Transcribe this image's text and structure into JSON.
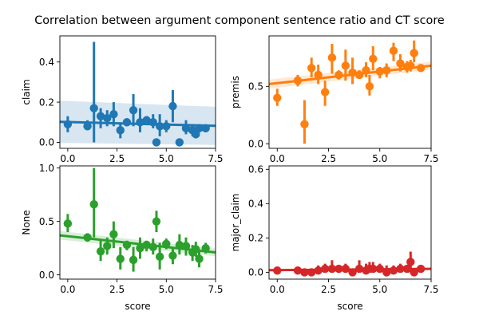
{
  "title": "Correlation between argument component sentence ratio and CT score",
  "chart_data": [
    {
      "type": "scatter",
      "ylabel": "claim",
      "xlabel": "",
      "color": "#1f77b4",
      "xlim": [
        -0.4,
        7.5
      ],
      "ylim": [
        -0.03,
        0.53
      ],
      "xticks": [
        0.0,
        2.5,
        5.0,
        7.5
      ],
      "xtick_labels": [
        "0.0",
        "2.5",
        "5.0",
        "7.5"
      ],
      "yticks": [
        0.0,
        0.2,
        0.4
      ],
      "ytick_labels": [
        "0.0",
        "0.2",
        "0.4"
      ],
      "points": [
        {
          "x": 0.0,
          "y": 0.09,
          "lo": 0.05,
          "hi": 0.13
        },
        {
          "x": 1.0,
          "y": 0.08,
          "lo": 0.06,
          "hi": 0.11
        },
        {
          "x": 1.33,
          "y": 0.17,
          "lo": 0.0,
          "hi": 0.5
        },
        {
          "x": 1.67,
          "y": 0.13,
          "lo": 0.07,
          "hi": 0.17
        },
        {
          "x": 2.0,
          "y": 0.12,
          "lo": 0.08,
          "hi": 0.16
        },
        {
          "x": 2.33,
          "y": 0.14,
          "lo": 0.08,
          "hi": 0.2
        },
        {
          "x": 2.67,
          "y": 0.06,
          "lo": 0.02,
          "hi": 0.1
        },
        {
          "x": 3.0,
          "y": 0.1,
          "lo": 0.08,
          "hi": 0.12
        },
        {
          "x": 3.33,
          "y": 0.16,
          "lo": 0.08,
          "hi": 0.24
        },
        {
          "x": 3.67,
          "y": 0.1,
          "lo": 0.05,
          "hi": 0.17
        },
        {
          "x": 4.0,
          "y": 0.11,
          "lo": 0.09,
          "hi": 0.13
        },
        {
          "x": 4.33,
          "y": 0.1,
          "lo": 0.07,
          "hi": 0.14
        },
        {
          "x": 4.5,
          "y": 0.0,
          "lo": 0.0,
          "hi": 0.0
        },
        {
          "x": 4.67,
          "y": 0.08,
          "lo": 0.03,
          "hi": 0.14
        },
        {
          "x": 5.0,
          "y": 0.08,
          "lo": 0.05,
          "hi": 0.11
        },
        {
          "x": 5.33,
          "y": 0.18,
          "lo": 0.1,
          "hi": 0.26
        },
        {
          "x": 5.67,
          "y": 0.0,
          "lo": 0.0,
          "hi": 0.0
        },
        {
          "x": 6.0,
          "y": 0.07,
          "lo": 0.04,
          "hi": 0.11
        },
        {
          "x": 6.33,
          "y": 0.06,
          "lo": 0.03,
          "hi": 0.09
        },
        {
          "x": 6.5,
          "y": 0.04,
          "lo": 0.02,
          "hi": 0.07
        },
        {
          "x": 6.67,
          "y": 0.07,
          "lo": 0.05,
          "hi": 0.09
        },
        {
          "x": 7.0,
          "y": 0.07,
          "lo": 0.05,
          "hi": 0.09
        }
      ],
      "fit": {
        "x0": -0.4,
        "y0": 0.102,
        "x1": 7.5,
        "y1": 0.082,
        "band_x0": 0.105,
        "band_x1": 0.095
      }
    },
    {
      "type": "scatter",
      "ylabel": "premis",
      "xlabel": "",
      "color": "#ff7f0e",
      "xlim": [
        -0.4,
        7.5
      ],
      "ylim": [
        -0.04,
        0.94
      ],
      "xticks": [
        0.0,
        2.5,
        5.0,
        7.5
      ],
      "xtick_labels": [
        "0.0",
        "2.5",
        "5.0",
        "7.5"
      ],
      "yticks": [
        0.0,
        0.5
      ],
      "ytick_labels": [
        "0.0",
        "0.5"
      ],
      "points": [
        {
          "x": 0.0,
          "y": 0.4,
          "lo": 0.33,
          "hi": 0.48
        },
        {
          "x": 1.0,
          "y": 0.55,
          "lo": 0.5,
          "hi": 0.6
        },
        {
          "x": 1.33,
          "y": 0.17,
          "lo": 0.0,
          "hi": 0.38
        },
        {
          "x": 1.67,
          "y": 0.66,
          "lo": 0.58,
          "hi": 0.75
        },
        {
          "x": 2.0,
          "y": 0.6,
          "lo": 0.52,
          "hi": 0.69
        },
        {
          "x": 2.33,
          "y": 0.45,
          "lo": 0.33,
          "hi": 0.55
        },
        {
          "x": 2.67,
          "y": 0.75,
          "lo": 0.61,
          "hi": 0.87
        },
        {
          "x": 3.0,
          "y": 0.6,
          "lo": 0.56,
          "hi": 0.64
        },
        {
          "x": 3.33,
          "y": 0.68,
          "lo": 0.55,
          "hi": 0.82
        },
        {
          "x": 3.67,
          "y": 0.62,
          "lo": 0.52,
          "hi": 0.75
        },
        {
          "x": 4.0,
          "y": 0.6,
          "lo": 0.57,
          "hi": 0.64
        },
        {
          "x": 4.33,
          "y": 0.64,
          "lo": 0.58,
          "hi": 0.71
        },
        {
          "x": 4.5,
          "y": 0.5,
          "lo": 0.42,
          "hi": 0.6
        },
        {
          "x": 4.67,
          "y": 0.74,
          "lo": 0.64,
          "hi": 0.85
        },
        {
          "x": 5.0,
          "y": 0.63,
          "lo": 0.57,
          "hi": 0.67
        },
        {
          "x": 5.33,
          "y": 0.64,
          "lo": 0.58,
          "hi": 0.7
        },
        {
          "x": 5.67,
          "y": 0.81,
          "lo": 0.72,
          "hi": 0.88
        },
        {
          "x": 6.0,
          "y": 0.7,
          "lo": 0.63,
          "hi": 0.78
        },
        {
          "x": 6.33,
          "y": 0.67,
          "lo": 0.62,
          "hi": 0.72
        },
        {
          "x": 6.5,
          "y": 0.68,
          "lo": 0.63,
          "hi": 0.73
        },
        {
          "x": 6.67,
          "y": 0.79,
          "lo": 0.71,
          "hi": 0.9
        },
        {
          "x": 7.0,
          "y": 0.66,
          "lo": 0.63,
          "hi": 0.69
        }
      ],
      "fit": {
        "x0": -0.4,
        "y0": 0.52,
        "x1": 7.5,
        "y1": 0.68,
        "band_x0": 0.04,
        "band_x1": 0.035
      }
    },
    {
      "type": "scatter",
      "ylabel": "None",
      "xlabel": "score",
      "color": "#2ca02c",
      "xlim": [
        -0.4,
        7.5
      ],
      "ylim": [
        -0.04,
        1.02
      ],
      "xticks": [
        0.0,
        2.5,
        5.0,
        7.5
      ],
      "xtick_labels": [
        "0.0",
        "2.5",
        "5.0",
        "7.5"
      ],
      "yticks": [
        0.0,
        0.5,
        1.0
      ],
      "ytick_labels": [
        "0.0",
        "0.5",
        "1.0"
      ],
      "points": [
        {
          "x": 0.0,
          "y": 0.48,
          "lo": 0.4,
          "hi": 0.57
        },
        {
          "x": 1.0,
          "y": 0.35,
          "lo": 0.31,
          "hi": 0.39
        },
        {
          "x": 1.33,
          "y": 0.66,
          "lo": 0.35,
          "hi": 1.0
        },
        {
          "x": 1.67,
          "y": 0.22,
          "lo": 0.13,
          "hi": 0.32
        },
        {
          "x": 2.0,
          "y": 0.27,
          "lo": 0.19,
          "hi": 0.35
        },
        {
          "x": 2.33,
          "y": 0.38,
          "lo": 0.25,
          "hi": 0.5
        },
        {
          "x": 2.67,
          "y": 0.15,
          "lo": 0.05,
          "hi": 0.26
        },
        {
          "x": 3.0,
          "y": 0.28,
          "lo": 0.23,
          "hi": 0.32
        },
        {
          "x": 3.33,
          "y": 0.14,
          "lo": 0.03,
          "hi": 0.26
        },
        {
          "x": 3.67,
          "y": 0.25,
          "lo": 0.15,
          "hi": 0.35
        },
        {
          "x": 4.0,
          "y": 0.28,
          "lo": 0.22,
          "hi": 0.32
        },
        {
          "x": 4.33,
          "y": 0.26,
          "lo": 0.19,
          "hi": 0.34
        },
        {
          "x": 4.5,
          "y": 0.5,
          "lo": 0.4,
          "hi": 0.6
        },
        {
          "x": 4.67,
          "y": 0.17,
          "lo": 0.05,
          "hi": 0.3
        },
        {
          "x": 5.0,
          "y": 0.29,
          "lo": 0.24,
          "hi": 0.34
        },
        {
          "x": 5.33,
          "y": 0.18,
          "lo": 0.1,
          "hi": 0.26
        },
        {
          "x": 5.67,
          "y": 0.28,
          "lo": 0.19,
          "hi": 0.38
        },
        {
          "x": 6.0,
          "y": 0.27,
          "lo": 0.18,
          "hi": 0.35
        },
        {
          "x": 6.33,
          "y": 0.21,
          "lo": 0.13,
          "hi": 0.28
        },
        {
          "x": 6.5,
          "y": 0.24,
          "lo": 0.17,
          "hi": 0.31
        },
        {
          "x": 6.67,
          "y": 0.15,
          "lo": 0.07,
          "hi": 0.24
        },
        {
          "x": 7.0,
          "y": 0.25,
          "lo": 0.2,
          "hi": 0.3
        }
      ],
      "fit": {
        "x0": -0.4,
        "y0": 0.37,
        "x1": 7.5,
        "y1": 0.21,
        "band_x0": 0.04,
        "band_x1": 0.035
      }
    },
    {
      "type": "scatter",
      "ylabel": "major_claim",
      "xlabel": "score",
      "color": "#d62728",
      "xlim": [
        -0.4,
        7.5
      ],
      "ylim": [
        -0.04,
        0.62
      ],
      "xticks": [
        0.0,
        2.5,
        5.0,
        7.5
      ],
      "xtick_labels": [
        "0.0",
        "2.5",
        "5.0",
        "7.5"
      ],
      "yticks": [
        0.0,
        0.2,
        0.4,
        0.6
      ],
      "ytick_labels": [
        "0.0",
        "0.2",
        "0.4",
        "0.6"
      ],
      "points": [
        {
          "x": 0.0,
          "y": 0.01,
          "lo": 0.0,
          "hi": 0.03
        },
        {
          "x": 1.0,
          "y": 0.01,
          "lo": 0.0,
          "hi": 0.02
        },
        {
          "x": 1.33,
          "y": 0.0,
          "lo": 0.0,
          "hi": 0.0
        },
        {
          "x": 1.67,
          "y": 0.0,
          "lo": 0.0,
          "hi": 0.0
        },
        {
          "x": 2.0,
          "y": 0.01,
          "lo": 0.0,
          "hi": 0.04
        },
        {
          "x": 2.33,
          "y": 0.02,
          "lo": 0.0,
          "hi": 0.05
        },
        {
          "x": 2.67,
          "y": 0.02,
          "lo": 0.0,
          "hi": 0.07
        },
        {
          "x": 3.0,
          "y": 0.02,
          "lo": 0.0,
          "hi": 0.04
        },
        {
          "x": 3.33,
          "y": 0.02,
          "lo": 0.0,
          "hi": 0.05
        },
        {
          "x": 3.67,
          "y": 0.0,
          "lo": 0.0,
          "hi": 0.02
        },
        {
          "x": 4.0,
          "y": 0.02,
          "lo": 0.0,
          "hi": 0.07
        },
        {
          "x": 4.33,
          "y": 0.01,
          "lo": 0.0,
          "hi": 0.05
        },
        {
          "x": 4.5,
          "y": 0.02,
          "lo": 0.0,
          "hi": 0.06
        },
        {
          "x": 4.67,
          "y": 0.02,
          "lo": 0.0,
          "hi": 0.06
        },
        {
          "x": 5.0,
          "y": 0.02,
          "lo": 0.0,
          "hi": 0.05
        },
        {
          "x": 5.33,
          "y": 0.0,
          "lo": 0.0,
          "hi": 0.04
        },
        {
          "x": 5.67,
          "y": 0.01,
          "lo": 0.0,
          "hi": 0.04
        },
        {
          "x": 6.0,
          "y": 0.02,
          "lo": 0.0,
          "hi": 0.05
        },
        {
          "x": 6.33,
          "y": 0.02,
          "lo": 0.0,
          "hi": 0.04
        },
        {
          "x": 6.5,
          "y": 0.06,
          "lo": 0.0,
          "hi": 0.12
        },
        {
          "x": 6.67,
          "y": 0.0,
          "lo": 0.0,
          "hi": 0.02
        },
        {
          "x": 7.0,
          "y": 0.02,
          "lo": 0.0,
          "hi": 0.03
        }
      ],
      "fit": {
        "x0": -0.4,
        "y0": 0.012,
        "x1": 7.5,
        "y1": 0.02,
        "band_x0": 0.006,
        "band_x1": 0.006
      }
    }
  ]
}
